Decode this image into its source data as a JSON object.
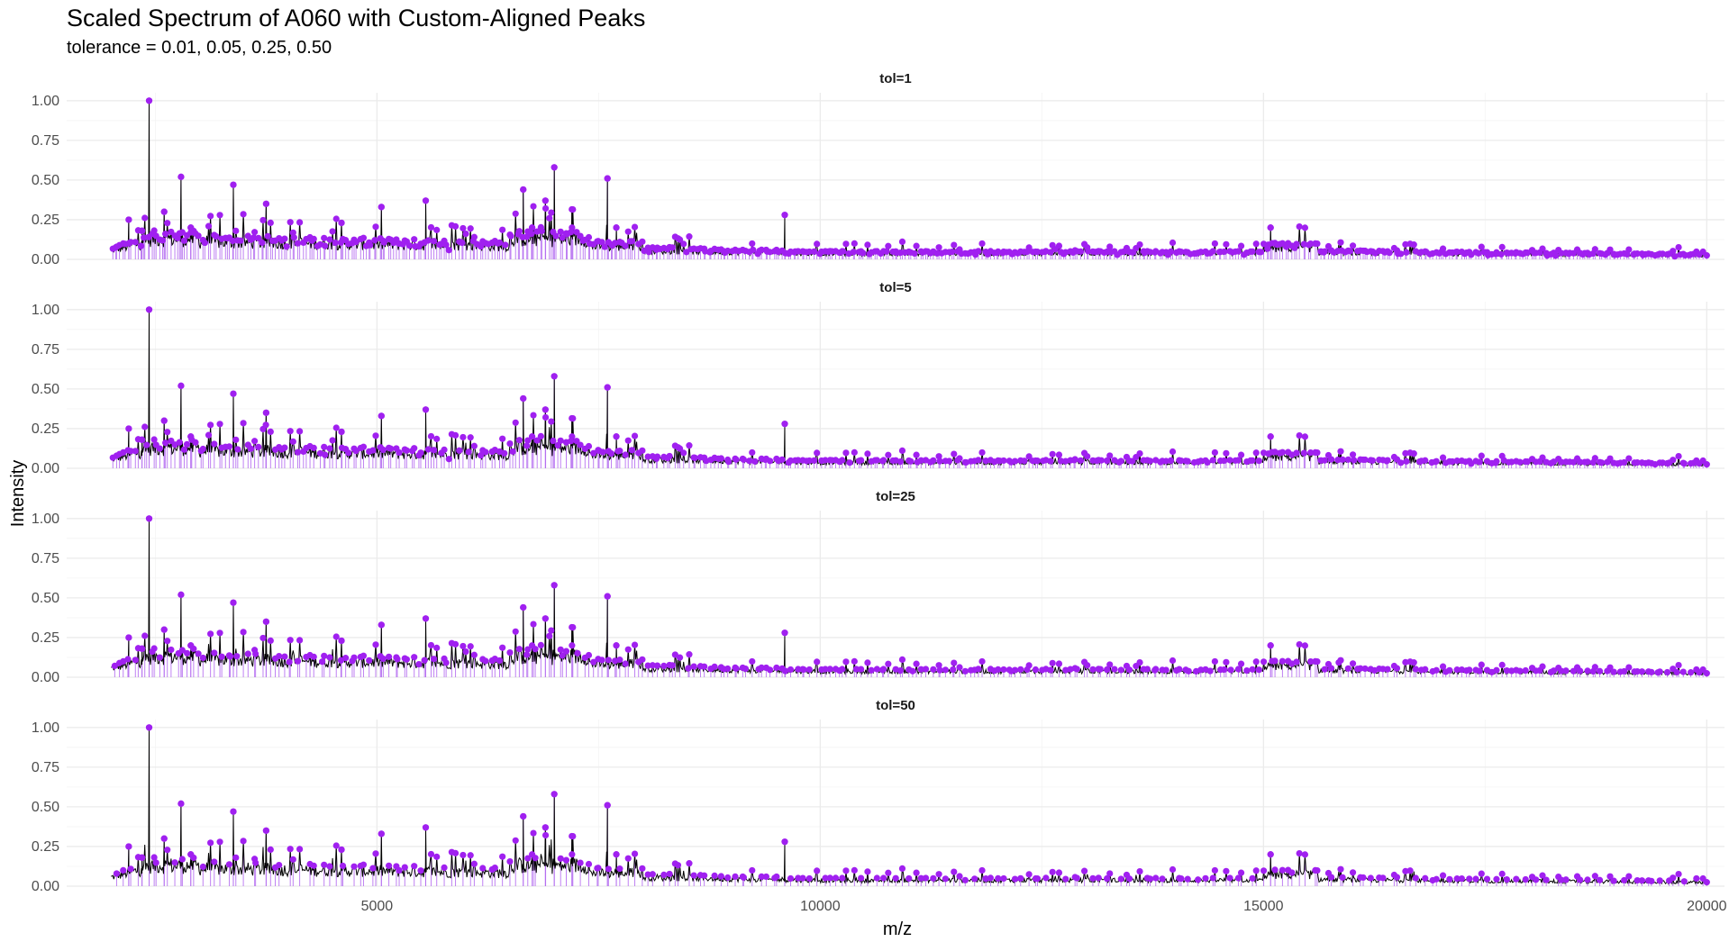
{
  "chart_data": {
    "type": "line",
    "title": "Scaled Spectrum of A060 with Custom-Aligned Peaks",
    "subtitle": "tolerance = 0.01, 0.05, 0.25, 0.50",
    "xlabel": "m/z",
    "ylabel": "Intensity",
    "xlim": [
      1500,
      20200
    ],
    "ylim": [
      0,
      1.05
    ],
    "x_ticks": [
      5000,
      10000,
      15000,
      20000
    ],
    "x_tick_labels": [
      "5000",
      "10000",
      "15000",
      "20000"
    ],
    "y_ticks": [
      0,
      0.25,
      0.5,
      0.75,
      1.0
    ],
    "y_tick_labels": [
      "0.00",
      "0.25",
      "0.50",
      "0.75",
      "1.00"
    ],
    "grid": true,
    "x_range": [
      2000,
      20000
    ],
    "colors": {
      "spectrum": "#000000",
      "peaks": "#a020f0",
      "peak_lines": "#b46cf0"
    },
    "spectrum_key_points": [
      [
        2000,
        0.03
      ],
      [
        2200,
        0.25
      ],
      [
        2350,
        0.18
      ],
      [
        2430,
        1.0
      ],
      [
        2600,
        0.3
      ],
      [
        2790,
        0.52
      ],
      [
        2900,
        0.2
      ],
      [
        3100,
        0.12
      ],
      [
        3380,
        0.47
      ],
      [
        3500,
        0.15
      ],
      [
        3750,
        0.35
      ],
      [
        4000,
        0.12
      ],
      [
        4300,
        0.1
      ],
      [
        4600,
        0.23
      ],
      [
        5000,
        0.1
      ],
      [
        5050,
        0.33
      ],
      [
        5300,
        0.15
      ],
      [
        5550,
        0.37
      ],
      [
        6000,
        0.1
      ],
      [
        6500,
        0.1
      ],
      [
        6650,
        0.44
      ],
      [
        6750,
        0.2
      ],
      [
        6900,
        0.37
      ],
      [
        7000,
        0.58
      ],
      [
        7200,
        0.2
      ],
      [
        7600,
        0.51
      ],
      [
        7700,
        0.2
      ],
      [
        8000,
        0.06
      ],
      [
        9000,
        0.04
      ],
      [
        9600,
        0.28
      ],
      [
        9800,
        0.08
      ],
      [
        10500,
        0.04
      ],
      [
        12000,
        0.03
      ],
      [
        14000,
        0.03
      ],
      [
        15080,
        0.2
      ],
      [
        15300,
        0.1
      ],
      [
        16000,
        0.05
      ],
      [
        17000,
        0.04
      ],
      [
        18500,
        0.03
      ],
      [
        20000,
        0.02
      ]
    ],
    "panels": [
      {
        "strip": "tol=1",
        "peak_count": 480
      },
      {
        "strip": "tol=5",
        "peak_count": 420
      },
      {
        "strip": "tol=25",
        "peak_count": 330
      },
      {
        "strip": "tol=50",
        "peak_count": 240
      }
    ]
  }
}
